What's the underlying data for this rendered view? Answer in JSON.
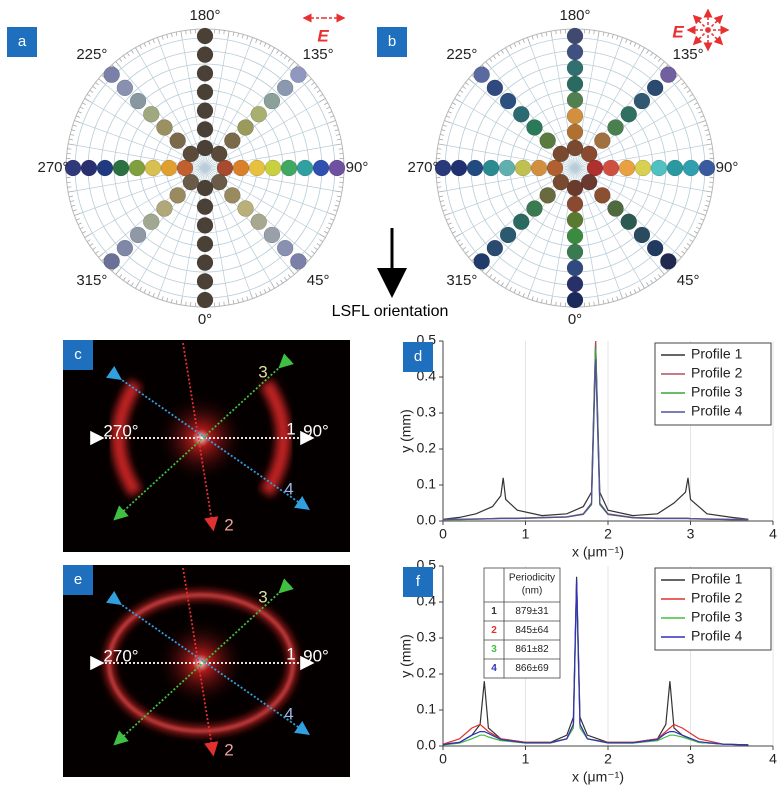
{
  "figure": {
    "panel_a": {
      "label": "a",
      "field": "E",
      "angles": [
        "180°",
        "135°",
        "90°",
        "45°",
        "0°",
        "315°",
        "270°",
        "225°"
      ]
    },
    "panel_b": {
      "label": "b",
      "field": "E",
      "angles": [
        "180°",
        "135°",
        "90°",
        "45°",
        "0°",
        "315°",
        "270°",
        "225°"
      ]
    },
    "arrow_label": "LSFL orientation",
    "panel_c": {
      "label": "c",
      "left": "270°",
      "right": "90°",
      "profiles": [
        "1",
        "2",
        "3",
        "4"
      ]
    },
    "panel_e": {
      "label": "e",
      "left": "270°",
      "right": "90°",
      "profiles": [
        "1",
        "2",
        "3",
        "4"
      ]
    }
  },
  "chart_data": [
    {
      "type": "line",
      "label": "d",
      "xlabel": "x (μm⁻¹)",
      "ylabel": "y (mm)",
      "x": [
        0,
        0.2,
        0.4,
        0.6,
        0.7,
        0.73,
        0.76,
        0.9,
        1.2,
        1.5,
        1.7,
        1.8,
        1.85,
        1.9,
        2.0,
        2.3,
        2.6,
        2.8,
        2.94,
        2.97,
        3.0,
        3.2,
        3.5,
        3.7
      ],
      "series": [
        {
          "name": "Profile 1",
          "color": "#333333",
          "values": [
            0.005,
            0.01,
            0.02,
            0.04,
            0.07,
            0.12,
            0.06,
            0.03,
            0.015,
            0.02,
            0.04,
            0.08,
            0.5,
            0.08,
            0.03,
            0.015,
            0.02,
            0.05,
            0.08,
            0.12,
            0.06,
            0.02,
            0.01,
            0.005
          ]
        },
        {
          "name": "Profile 2",
          "color": "#b05060",
          "values": [
            0.005,
            0.005,
            0.006,
            0.007,
            0.008,
            0.008,
            0.008,
            0.008,
            0.01,
            0.012,
            0.02,
            0.05,
            0.5,
            0.05,
            0.02,
            0.01,
            0.008,
            0.008,
            0.008,
            0.008,
            0.007,
            0.006,
            0.005,
            0.005
          ]
        },
        {
          "name": "Profile 3",
          "color": "#33aa33",
          "values": [
            0.004,
            0.004,
            0.005,
            0.006,
            0.007,
            0.007,
            0.007,
            0.007,
            0.009,
            0.011,
            0.018,
            0.045,
            0.48,
            0.045,
            0.018,
            0.009,
            0.007,
            0.007,
            0.007,
            0.007,
            0.006,
            0.005,
            0.004,
            0.004
          ]
        },
        {
          "name": "Profile 4",
          "color": "#5050a0",
          "values": [
            0.004,
            0.005,
            0.005,
            0.006,
            0.007,
            0.007,
            0.007,
            0.007,
            0.009,
            0.011,
            0.019,
            0.048,
            0.45,
            0.048,
            0.019,
            0.009,
            0.007,
            0.007,
            0.007,
            0.007,
            0.006,
            0.005,
            0.004,
            0.004
          ]
        }
      ],
      "xlim": [
        0,
        4
      ],
      "ylim": [
        0,
        0.5
      ],
      "xticks": [
        0,
        1,
        2,
        3,
        4
      ],
      "yticks": [
        {
          "value": 0,
          "label": "0.0"
        },
        0.1,
        0.2,
        0.3,
        0.4,
        0.5
      ],
      "grid": true,
      "legend": "upper right"
    },
    {
      "type": "line",
      "label": "f",
      "xlabel": "x (μm⁻¹)",
      "ylabel": "y (mm)",
      "x": [
        0,
        0.2,
        0.35,
        0.45,
        0.5,
        0.55,
        0.7,
        1.0,
        1.3,
        1.5,
        1.58,
        1.62,
        1.66,
        1.75,
        2.0,
        2.3,
        2.6,
        2.7,
        2.75,
        2.8,
        2.9,
        3.1,
        3.4,
        3.7
      ],
      "series": [
        {
          "name": "Profile 1",
          "color": "#333333",
          "values": [
            0.005,
            0.01,
            0.03,
            0.06,
            0.18,
            0.05,
            0.02,
            0.01,
            0.01,
            0.03,
            0.08,
            0.47,
            0.08,
            0.03,
            0.01,
            0.01,
            0.02,
            0.06,
            0.18,
            0.05,
            0.03,
            0.01,
            0.005,
            0.003
          ]
        },
        {
          "name": "Profile 2",
          "color": "#e03030",
          "values": [
            0.005,
            0.02,
            0.05,
            0.06,
            0.05,
            0.04,
            0.02,
            0.01,
            0.01,
            0.02,
            0.06,
            0.45,
            0.06,
            0.02,
            0.01,
            0.01,
            0.02,
            0.04,
            0.05,
            0.06,
            0.05,
            0.02,
            0.005,
            0.003
          ]
        },
        {
          "name": "Profile 3",
          "color": "#40c040",
          "values": [
            0.003,
            0.008,
            0.02,
            0.03,
            0.03,
            0.025,
            0.015,
            0.008,
            0.008,
            0.02,
            0.05,
            0.44,
            0.05,
            0.02,
            0.008,
            0.008,
            0.015,
            0.025,
            0.03,
            0.03,
            0.025,
            0.01,
            0.005,
            0.003
          ]
        },
        {
          "name": "Profile 4",
          "color": "#3030c0",
          "values": [
            0.004,
            0.01,
            0.03,
            0.04,
            0.04,
            0.035,
            0.018,
            0.009,
            0.009,
            0.02,
            0.06,
            0.46,
            0.06,
            0.02,
            0.009,
            0.009,
            0.018,
            0.035,
            0.04,
            0.04,
            0.03,
            0.012,
            0.005,
            0.003
          ]
        }
      ],
      "xlim": [
        0,
        4
      ],
      "ylim": [
        0,
        0.5
      ],
      "xticks": [
        0,
        1,
        2,
        3,
        4
      ],
      "yticks": [
        {
          "value": 0,
          "label": "0.0"
        },
        0.1,
        0.2,
        0.3,
        0.4,
        0.5
      ],
      "grid": true,
      "legend": "upper right",
      "table": {
        "header": [
          "Periodicity",
          "(nm)"
        ],
        "rows": [
          [
            "1",
            "879±31"
          ],
          [
            "2",
            "845±64"
          ],
          [
            "3",
            "861±82"
          ],
          [
            "4",
            "866±69"
          ]
        ]
      }
    }
  ]
}
